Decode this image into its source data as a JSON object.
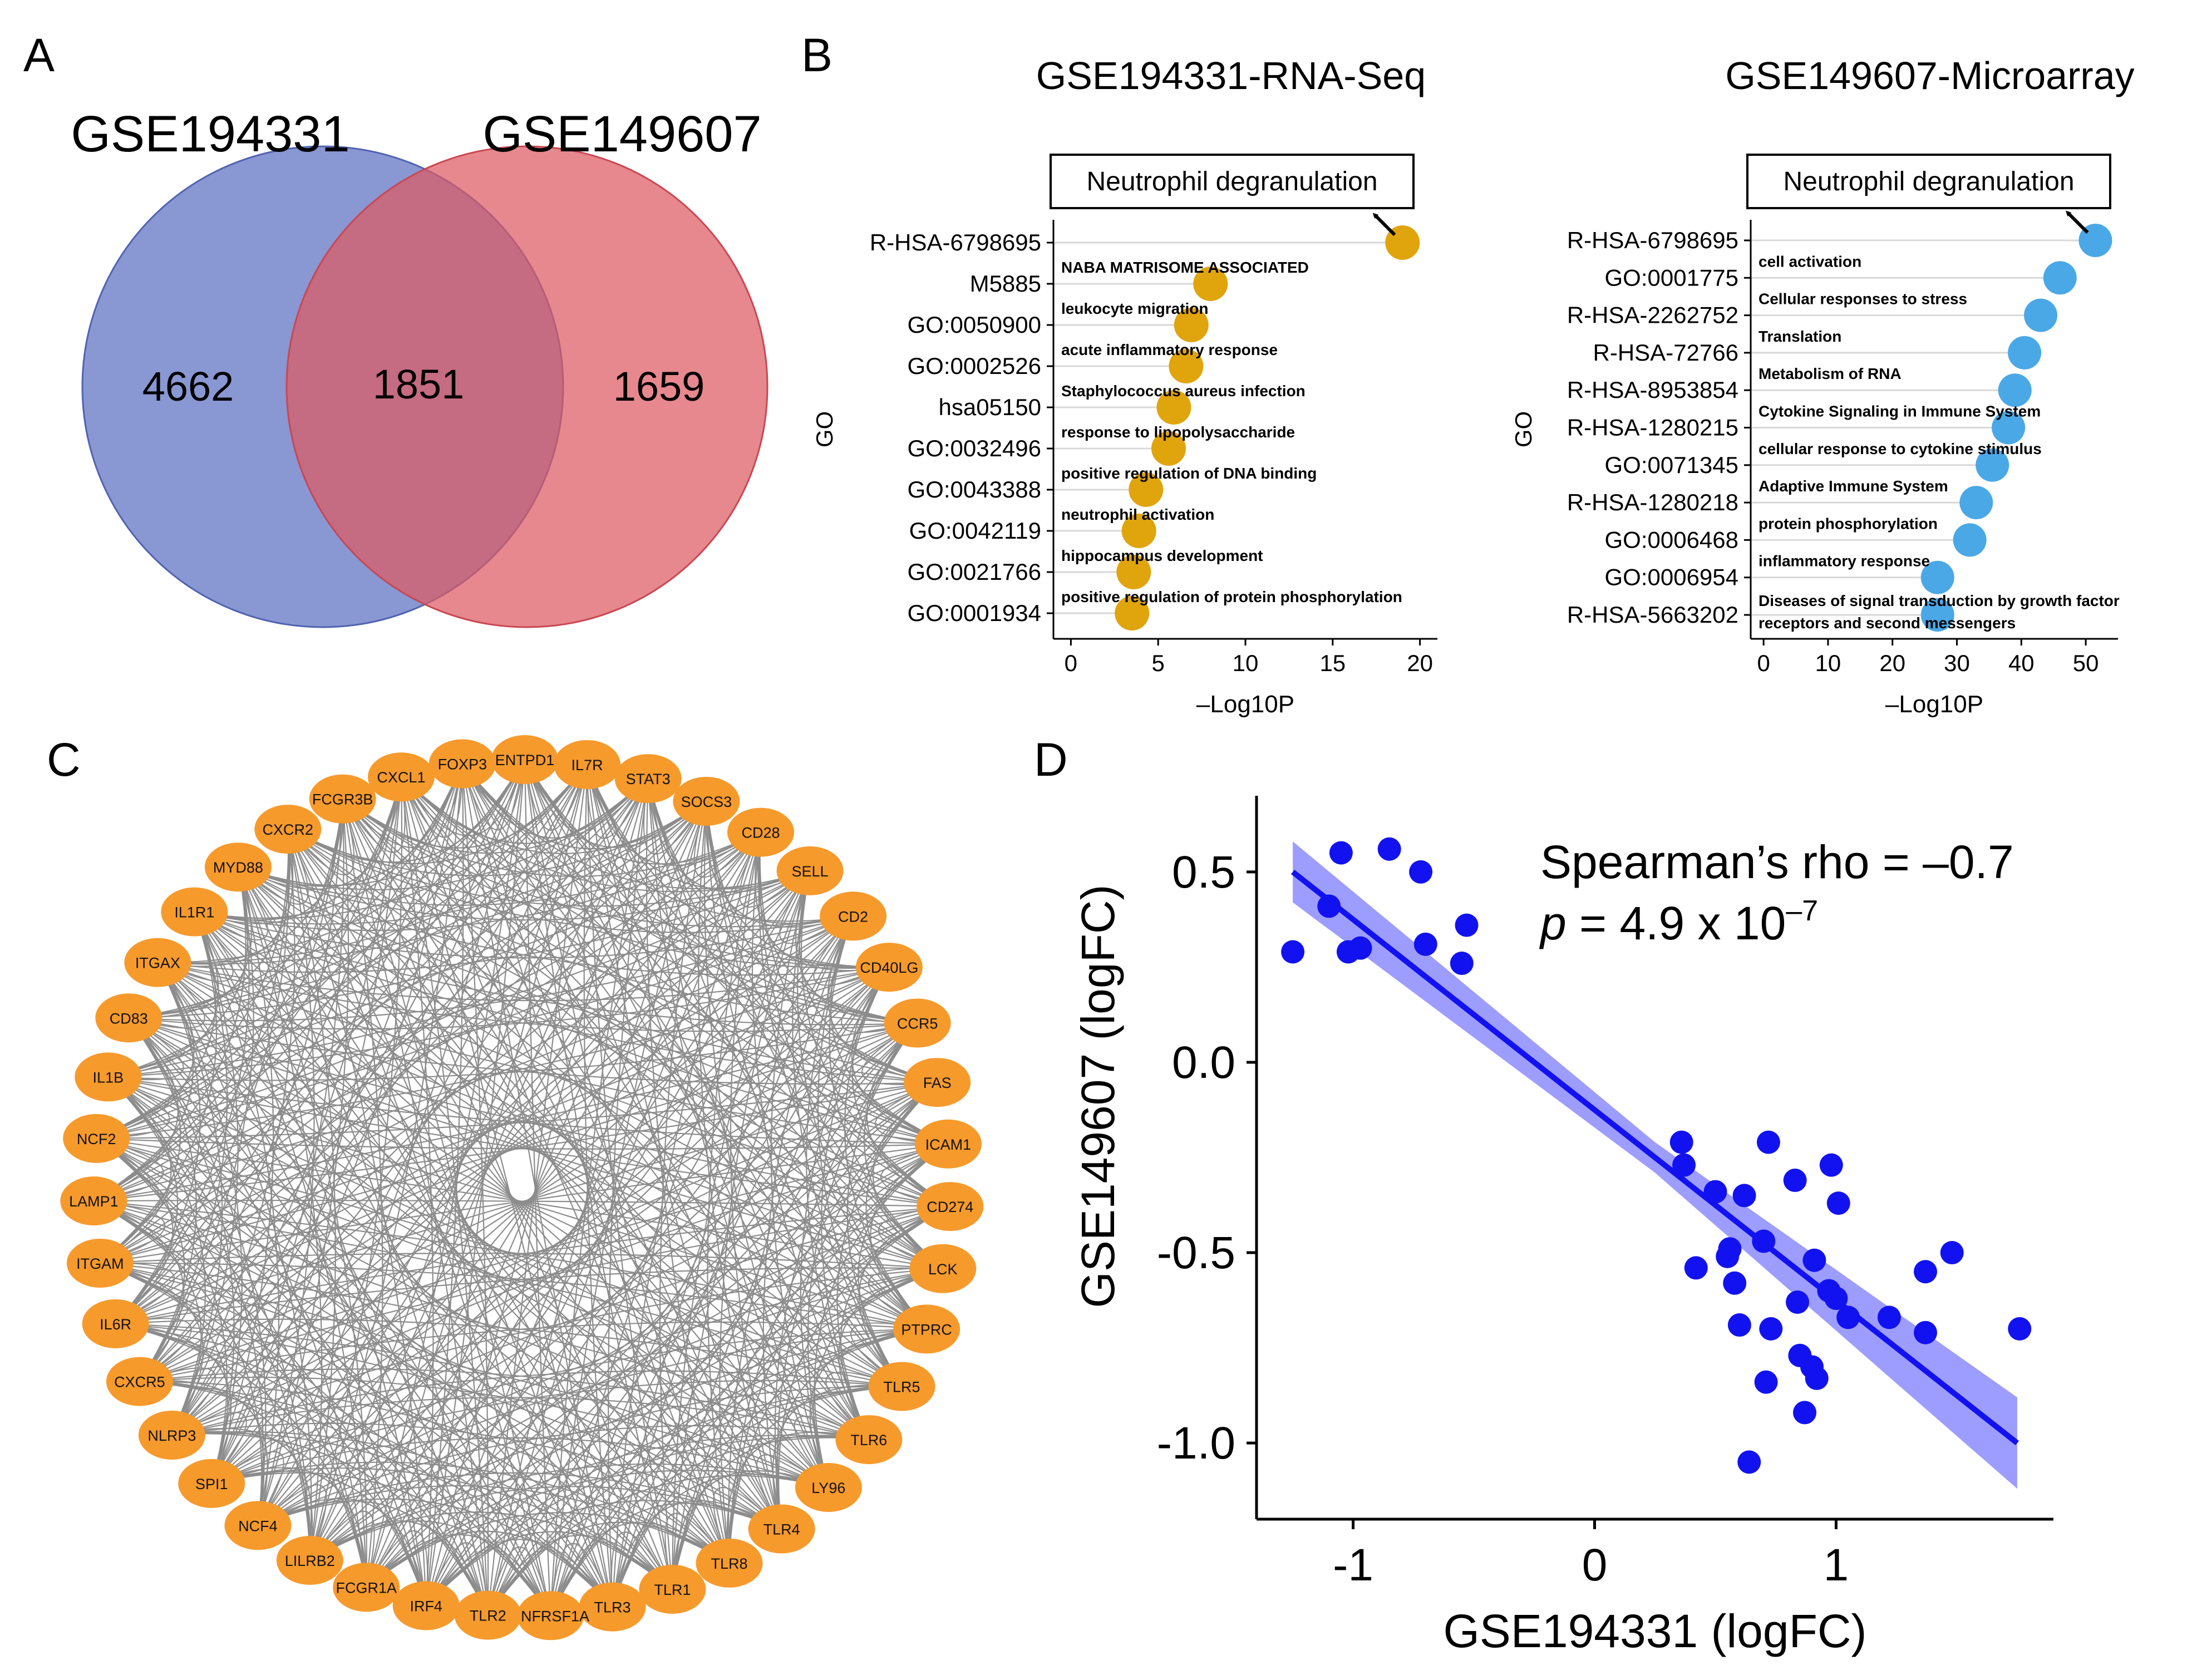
{
  "panels": {
    "a": "A",
    "b": "B",
    "c": "C",
    "d": "D"
  },
  "chart_data": [
    {
      "type": "venn",
      "sets": [
        {
          "name": "GSE194331",
          "only": 4662,
          "color": "#5b6fc2"
        },
        {
          "name": "GSE149607",
          "only": 1659,
          "color": "#dc5a62"
        }
      ],
      "intersection": 1851
    },
    {
      "type": "lollipop",
      "title": "GSE194331-RNA-Seq",
      "xlabel": "–Log10P",
      "ylabel": "GO",
      "xlim": [
        -1,
        21
      ],
      "xticks": [
        0,
        5,
        10,
        15,
        20
      ],
      "color": "#e0a40c",
      "annotation": "Neutrophil degranulation",
      "items": [
        {
          "id": "R-HSA-6798695",
          "value": 19.0,
          "desc": ""
        },
        {
          "id": "M5885",
          "value": 8.0,
          "desc": "NABA MATRISOME ASSOCIATED"
        },
        {
          "id": "GO:0050900",
          "value": 6.9,
          "desc": "leukocyte migration"
        },
        {
          "id": "GO:0002526",
          "value": 6.6,
          "desc": "acute inflammatory response"
        },
        {
          "id": "hsa05150",
          "value": 5.9,
          "desc": "Staphylococcus aureus infection"
        },
        {
          "id": "GO:0032496",
          "value": 5.6,
          "desc": "response to lipopolysaccharide"
        },
        {
          "id": "GO:0043388",
          "value": 4.3,
          "desc": "positive regulation of DNA binding"
        },
        {
          "id": "GO:0042119",
          "value": 3.9,
          "desc": "neutrophil activation"
        },
        {
          "id": "GO:0021766",
          "value": 3.6,
          "desc": "hippocampus development"
        },
        {
          "id": "GO:0001934",
          "value": 3.5,
          "desc": "positive regulation of protein phosphorylation"
        }
      ]
    },
    {
      "type": "lollipop",
      "title": "GSE149607-Microarray",
      "xlabel": "–Log10P",
      "ylabel": "GO",
      "xlim": [
        -2,
        55
      ],
      "xticks": [
        0,
        10,
        20,
        30,
        40,
        50
      ],
      "color": "#4aa8e6",
      "annotation": "Neutrophil degranulation",
      "items": [
        {
          "id": "R-HSA-6798695",
          "value": 51.5,
          "desc": ""
        },
        {
          "id": "GO:0001775",
          "value": 46.0,
          "desc": "cell activation"
        },
        {
          "id": "R-HSA-2262752",
          "value": 43.0,
          "desc": "Cellular responses to stress"
        },
        {
          "id": "R-HSA-72766",
          "value": 40.5,
          "desc": "Translation"
        },
        {
          "id": "R-HSA-8953854",
          "value": 39.0,
          "desc": "Metabolism of RNA"
        },
        {
          "id": "R-HSA-1280215",
          "value": 38.0,
          "desc": "Cytokine Signaling in Immune System"
        },
        {
          "id": "GO:0071345",
          "value": 35.5,
          "desc": "cellular response to cytokine stimulus"
        },
        {
          "id": "R-HSA-1280218",
          "value": 33.0,
          "desc": "Adaptive Immune System"
        },
        {
          "id": "GO:0006468",
          "value": 32.0,
          "desc": "protein phosphorylation"
        },
        {
          "id": "GO:0006954",
          "value": 27.0,
          "desc": "inflammatory response"
        },
        {
          "id": "R-HSA-5663202",
          "value": 27.0,
          "desc": "Diseases of signal transduction by growth factor receptors and second messengers"
        }
      ]
    },
    {
      "type": "network",
      "node_color": "#f79a2c",
      "edge_color": "#8c8c8c",
      "nodes": [
        "FOXP3",
        "ENTPD1",
        "IL7R",
        "STAT3",
        "SOCS3",
        "CD28",
        "SELL",
        "CD2",
        "CD40LG",
        "CCR5",
        "FAS",
        "ICAM1",
        "CD274",
        "LCK",
        "PTPRC",
        "TLR5",
        "TLR6",
        "LY96",
        "TLR4",
        "TLR8",
        "TLR1",
        "TLR3",
        "TNFRSF1A",
        "TLR2",
        "IRF4",
        "FCGR1A",
        "LILRB2",
        "NCF4",
        "SPI1",
        "NLRP3",
        "CXCR5",
        "IL6R",
        "ITGAM",
        "LAMP1",
        "NCF2",
        "IL1B",
        "CD83",
        "ITGAX",
        "IL1R1",
        "MYD88",
        "CXCR2",
        "FCGR3B",
        "CXCL1"
      ]
    },
    {
      "type": "scatter",
      "xlabel": "GSE194331 (logFC)",
      "ylabel": "GSE149607 (logFC)",
      "xlim": [
        -1.4,
        1.9
      ],
      "ylim": [
        -1.2,
        0.7
      ],
      "xticks": [
        -1,
        0,
        1
      ],
      "yticks": [
        0.5,
        0.0,
        -0.5,
        -1.0
      ],
      "xtick_labels": [
        "-1",
        "0",
        "1"
      ],
      "ytick_labels": [
        "0.5",
        "0.0",
        "-0.5",
        "-1.0"
      ],
      "point_color": "#1212f0",
      "stat_label": "Spearman’s rho = –0.7",
      "p_label": {
        "p": "p",
        "eq": " = 4.9 x 10",
        "exp": "–7"
      },
      "fit": {
        "x1": -1.25,
        "y1": 0.5,
        "x2": 1.75,
        "y2": -1.0
      },
      "band_halfwidth": {
        "left": 0.08,
        "mid": 0.04,
        "right": 0.12
      },
      "points": [
        [
          -1.25,
          0.29
        ],
        [
          -1.05,
          0.55
        ],
        [
          -1.1,
          0.41
        ],
        [
          -1.02,
          0.29
        ],
        [
          -0.97,
          0.3
        ],
        [
          -0.85,
          0.56
        ],
        [
          -0.72,
          0.5
        ],
        [
          -0.7,
          0.31
        ],
        [
          -0.55,
          0.26
        ],
        [
          -0.53,
          0.36
        ],
        [
          0.36,
          -0.21
        ],
        [
          0.37,
          -0.27
        ],
        [
          0.42,
          -0.54
        ],
        [
          0.5,
          -0.34
        ],
        [
          0.55,
          -0.51
        ],
        [
          0.56,
          -0.49
        ],
        [
          0.58,
          -0.58
        ],
        [
          0.6,
          -0.69
        ],
        [
          0.62,
          -0.35
        ],
        [
          0.64,
          -1.05
        ],
        [
          0.7,
          -0.47
        ],
        [
          0.71,
          -0.84
        ],
        [
          0.72,
          -0.21
        ],
        [
          0.73,
          -0.7
        ],
        [
          0.83,
          -0.31
        ],
        [
          0.84,
          -0.63
        ],
        [
          0.85,
          -0.77
        ],
        [
          0.87,
          -0.92
        ],
        [
          0.9,
          -0.8
        ],
        [
          0.91,
          -0.52
        ],
        [
          0.97,
          -0.6
        ],
        [
          0.98,
          -0.27
        ],
        [
          1.0,
          -0.62
        ],
        [
          1.01,
          -0.37
        ],
        [
          1.05,
          -0.67
        ],
        [
          1.22,
          -0.67
        ],
        [
          1.37,
          -0.71
        ],
        [
          1.37,
          -0.55
        ],
        [
          1.48,
          -0.5
        ],
        [
          1.76,
          -0.7
        ],
        [
          0.92,
          -0.83
        ]
      ]
    }
  ]
}
